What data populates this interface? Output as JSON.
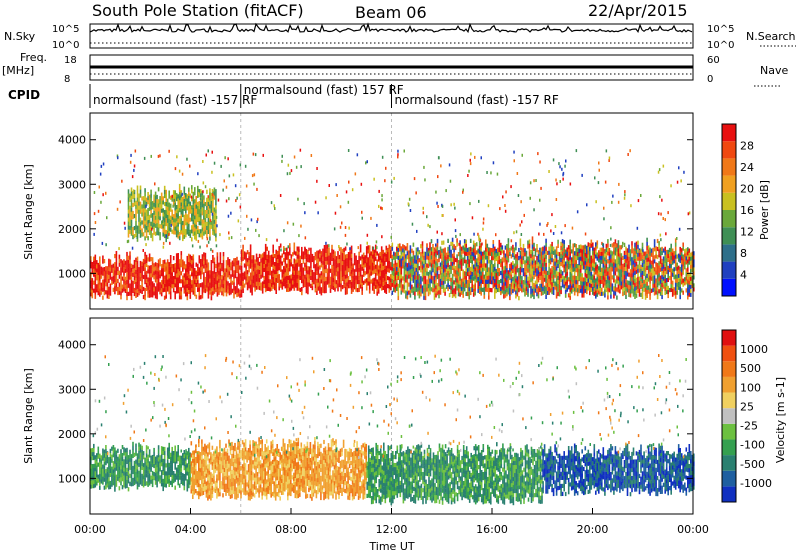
{
  "header": {
    "station": "South Pole Station (fitACF)",
    "beam": "Beam 06",
    "date": "22/Apr/2015"
  },
  "top_panels": {
    "nsky_label": "N.Sky",
    "nsky_ticks": [
      "10^5",
      "10^0"
    ],
    "nsearch_label": "N.Search",
    "nsearch_ticks": [
      "10^5",
      "10^0"
    ],
    "freq_label_1": "Freq.",
    "freq_label_2": "[MHz]",
    "freq_ticks": [
      "18",
      "8"
    ],
    "nave_label": "Nave",
    "nave_ticks": [
      "60",
      "0"
    ],
    "cpid_label": "CPID",
    "cpid_segments": [
      {
        "label": "normalsound (fast) -157 RF",
        "start_hour": 0,
        "end_hour": 6
      },
      {
        "label": "normalsound (fast) 157 RF",
        "start_hour": 6,
        "end_hour": 12
      },
      {
        "label": "normalsound (fast) -157 RF",
        "start_hour": 12,
        "end_hour": 24
      }
    ]
  },
  "colorbars": {
    "power": {
      "label": "Power [dB]",
      "ticks": [
        "28",
        "24",
        "20",
        "16",
        "12",
        "8",
        "4"
      ],
      "colors": [
        "#0010ff",
        "#2040c0",
        "#2e6f8a",
        "#3f8f55",
        "#6aa83a",
        "#c9c020",
        "#f0a020",
        "#f07818",
        "#f04810",
        "#e81010"
      ]
    },
    "velocity": {
      "label": "Velocity [m s-1]",
      "ticks": [
        "1000",
        "500",
        "100",
        "25",
        "-25",
        "-100",
        "-500",
        "-1000"
      ],
      "colors": [
        "#1030c0",
        "#1f5fa0",
        "#2a8070",
        "#35a050",
        "#6cc040",
        "#c0c0c0",
        "#f0d060",
        "#f0a030",
        "#f07818",
        "#f05010",
        "#e01010"
      ]
    }
  },
  "chart_data": [
    {
      "type": "heatmap",
      "name": "power-panel",
      "ylabel": "Slant Range [km]",
      "yticks": [
        "4000",
        "3000",
        "2000",
        "1000"
      ],
      "ylim": [
        200,
        4600
      ],
      "xlim": [
        0,
        24
      ],
      "bands": [
        {
          "t0": 0,
          "t1": 6,
          "r0": 500,
          "r1": 1300,
          "level": "high"
        },
        {
          "t0": 1.5,
          "t1": 5,
          "r0": 1800,
          "r1": 2800,
          "level": "mid"
        },
        {
          "t0": 6,
          "t1": 12,
          "r0": 600,
          "r1": 1500,
          "level": "high"
        },
        {
          "t0": 12,
          "t1": 24,
          "r0": 500,
          "r1": 1600,
          "level": "mixed"
        }
      ]
    },
    {
      "type": "heatmap",
      "name": "velocity-panel",
      "ylabel": "Slant Range [km]",
      "yticks": [
        "4000",
        "3000",
        "2000",
        "1000"
      ],
      "ylim": [
        200,
        4600
      ],
      "xlim": [
        0,
        24
      ],
      "xticks": [
        "00:00",
        "04:00",
        "08:00",
        "12:00",
        "16:00",
        "20:00",
        "00:00"
      ],
      "xlabel": "Time UT",
      "bands": [
        {
          "t0": 0,
          "t1": 4,
          "r0": 800,
          "r1": 1600,
          "level": "green"
        },
        {
          "t0": 4,
          "t1": 11,
          "r0": 600,
          "r1": 1700,
          "level": "orange"
        },
        {
          "t0": 11,
          "t1": 18,
          "r0": 500,
          "r1": 1600,
          "level": "green"
        },
        {
          "t0": 18,
          "t1": 24,
          "r0": 700,
          "r1": 1600,
          "level": "blue"
        }
      ]
    }
  ]
}
